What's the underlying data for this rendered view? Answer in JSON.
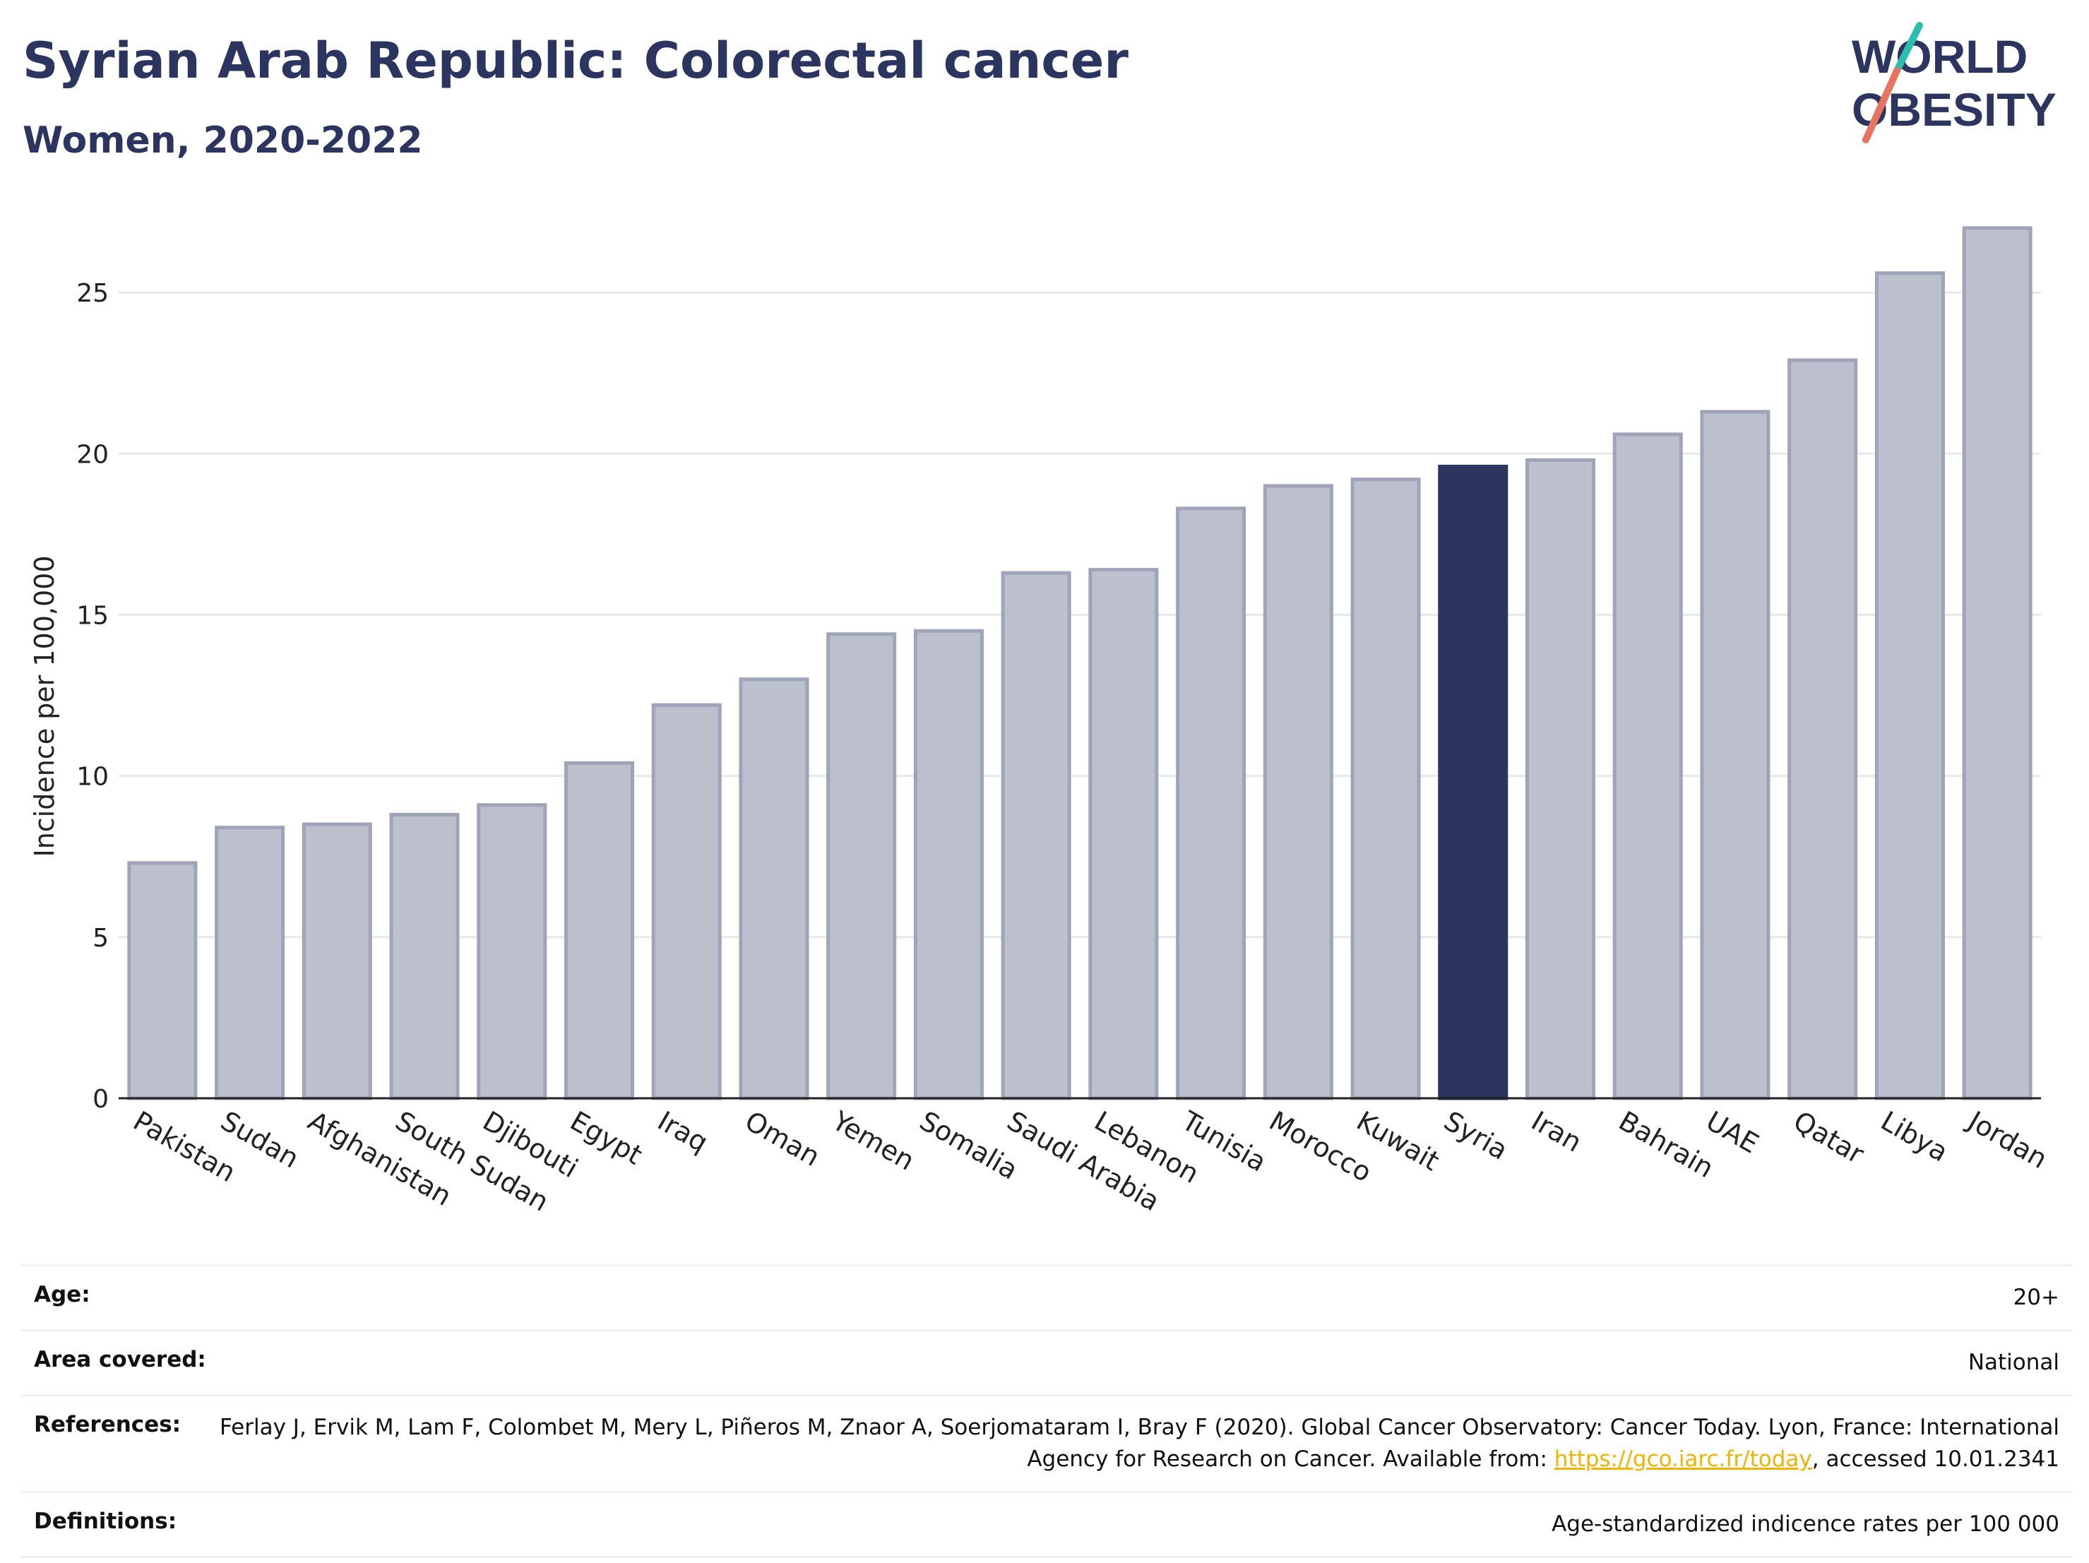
{
  "header": {
    "title": "Syrian Arab Republic: Colorectal cancer",
    "subtitle": "Women, 2020-2022"
  },
  "logo": {
    "line1": "WORLD",
    "line2": "OBESITY"
  },
  "chart_data": {
    "type": "bar",
    "ylabel": "Incidence per 100,000",
    "xlabel": "",
    "ylim": [
      0,
      27.5
    ],
    "yticks": [
      0,
      5,
      10,
      15,
      20,
      25
    ],
    "grid": true,
    "categories": [
      "Pakistan",
      "Sudan",
      "Afghanistan",
      "South Sudan",
      "Djibouti",
      "Egypt",
      "Iraq",
      "Oman",
      "Yemen",
      "Somalia",
      "Saudi Arabia",
      "Lebanon",
      "Tunisia",
      "Morocco",
      "Kuwait",
      "Syria",
      "Iran",
      "Bahrain",
      "UAE",
      "Qatar",
      "Libya",
      "Jordan"
    ],
    "values": [
      7.3,
      8.4,
      8.5,
      8.8,
      9.1,
      10.4,
      12.2,
      13.0,
      14.4,
      14.5,
      16.3,
      16.4,
      18.3,
      19.0,
      19.2,
      19.6,
      19.8,
      20.6,
      21.3,
      22.9,
      25.6,
      27.0
    ],
    "highlight": "Syria",
    "colors": {
      "bar": "#bcc0cd",
      "bar_border": "#9fa4b8",
      "highlight": "#2b3560",
      "grid": "#e6e8ec",
      "axis": "#222222"
    }
  },
  "info": {
    "age_label": "Age:",
    "age_value": "20+",
    "area_label": "Area covered:",
    "area_value": "National",
    "references_label": "References:",
    "references_text": "Ferlay J, Ervik M, Lam F, Colombet M, Mery L, Piñeros M, Znaor A, Soerjomataram I, Bray F (2020). Global Cancer Observatory: Cancer Today. Lyon, France: International Agency for Research on Cancer. Available from:",
    "references_link": "https://gco.iarc.fr/today",
    "references_suffix": ", accessed 10.01.2341",
    "definitions_label": "Definitions:",
    "definitions_value": "Age-standardized indicence rates per 100 000"
  }
}
